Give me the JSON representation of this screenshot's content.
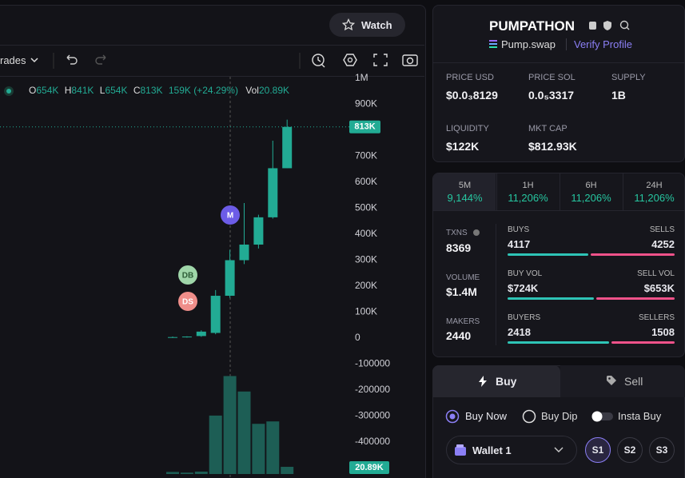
{
  "toolbar": {
    "watch": "Watch",
    "interval": "rades"
  },
  "chart_data": {
    "type": "candlestick",
    "legend": {
      "o": "O",
      "o_value": "654K",
      "h": "H",
      "h_value": "841K",
      "l": "L",
      "l_value": "654K",
      "c": "C",
      "c_value": "813K",
      "change": "159K (+24.29%)",
      "vol": "Vol",
      "vol_value": "20.89K"
    },
    "candles": [
      {
        "open": 2000,
        "high": 6000,
        "low": 1000,
        "close": 4000
      },
      {
        "open": 3000,
        "high": 7000,
        "low": 2000,
        "close": 6000
      },
      {
        "open": 8000,
        "high": 30000,
        "low": 5000,
        "close": 25000
      },
      {
        "open": 20000,
        "high": 185000,
        "low": 15000,
        "close": 163000
      },
      {
        "open": 163000,
        "high": 340000,
        "low": 155000,
        "close": 300000
      },
      {
        "open": 300000,
        "high": 520000,
        "low": 285000,
        "close": 360000
      },
      {
        "open": 360000,
        "high": 475000,
        "low": 345000,
        "close": 465000
      },
      {
        "open": 465000,
        "high": 760000,
        "low": 460000,
        "close": 654000
      },
      {
        "open": 654000,
        "high": 841000,
        "low": 654000,
        "close": 813000
      }
    ],
    "volume": [
      6000,
      4000,
      7000,
      170000,
      285000,
      240000,
      146000,
      153000,
      20890
    ],
    "ylim": [
      -540000,
      1000000
    ],
    "yticks": [
      {
        "value": 1000000,
        "label": "1M"
      },
      {
        "value": 900000,
        "label": "900K"
      },
      {
        "value": 700000,
        "label": "700K"
      },
      {
        "value": 600000,
        "label": "600K"
      },
      {
        "value": 500000,
        "label": "500K"
      },
      {
        "value": 400000,
        "label": "400K"
      },
      {
        "value": 300000,
        "label": "300K"
      },
      {
        "value": 200000,
        "label": "200K"
      },
      {
        "value": 100000,
        "label": "100K"
      },
      0,
      -100000,
      -200000,
      -300000,
      -400000
    ],
    "volume_ylim": [
      0,
      300000
    ],
    "last_price_label": "813K",
    "last_volume_label": "20.89K",
    "up_color": "#22ab94",
    "volume_color": "#1d5e55",
    "markers": [
      "M",
      "DB",
      "DS"
    ]
  },
  "token": {
    "name": "PUMPATHON",
    "dex": "Pump.swap",
    "verify": "Verify Profile"
  },
  "stats": [
    {
      "label": "PRICE USD",
      "value": "$0.0₃8129"
    },
    {
      "label": "PRICE SOL",
      "value": "0.0₅3317"
    },
    {
      "label": "SUPPLY",
      "value": "1B"
    },
    {
      "label": "LIQUIDITY",
      "value": "$122K"
    },
    {
      "label": "MKT CAP",
      "value": "$812.93K"
    }
  ],
  "timeframes": [
    {
      "label": "5M",
      "change": "9,144%"
    },
    {
      "label": "1H",
      "change": "11,206%"
    },
    {
      "label": "6H",
      "change": "11,206%"
    },
    {
      "label": "24H",
      "change": "11,206%"
    }
  ],
  "summary": [
    {
      "label": "TXNS",
      "value": "8369"
    },
    {
      "label": "VOLUME",
      "value": "$1.4M"
    },
    {
      "label": "MAKERS",
      "value": "2440"
    }
  ],
  "split": [
    {
      "left_label": "BUYS",
      "left": 4117,
      "right_label": "SELLS",
      "right": 4252
    },
    {
      "left_label": "BUY VOL",
      "left": {
        "value": 724000,
        "label": "$724K"
      },
      "right_label": "SELL VOL",
      "right": {
        "value": 653000,
        "label": "$653K"
      }
    },
    {
      "left_label": "BUYERS",
      "left": 2418,
      "right_label": "SELLERS",
      "right": 1508
    }
  ],
  "trade": {
    "tabs": [
      "Buy",
      "Sell"
    ],
    "modes": [
      "Buy Now",
      "Buy Dip"
    ],
    "toggle": "Insta Buy",
    "wallet": "Wallet 1",
    "slots": [
      "S1",
      "S2",
      "S3"
    ]
  }
}
